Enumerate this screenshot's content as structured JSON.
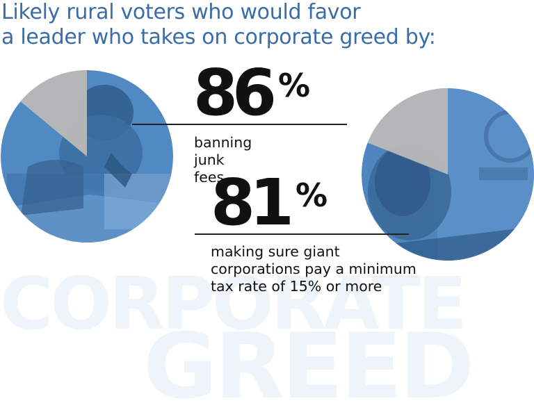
{
  "title": {
    "line1": "Likely rural voters who would favor",
    "line2": "a leader who takes on corporate greed by:"
  },
  "watermark": {
    "line1": "CORPORATE",
    "line2": "GREED"
  },
  "colors": {
    "title": "#3a6ca8",
    "pie_fill": "#4f86c0",
    "pie_photo_dark": "#3d6e9e",
    "pie_remainder": "#c9c9c9",
    "text": "#111111",
    "watermark": "#eef4fa"
  },
  "chart_data": [
    {
      "type": "pie",
      "value": 86,
      "number": "86",
      "unit": "%",
      "label": "banning junk fees"
    },
    {
      "type": "pie",
      "value": 81,
      "number": "81",
      "unit": "%",
      "label": "making sure giant corporations pay a minimum tax rate of 15% or more"
    }
  ]
}
